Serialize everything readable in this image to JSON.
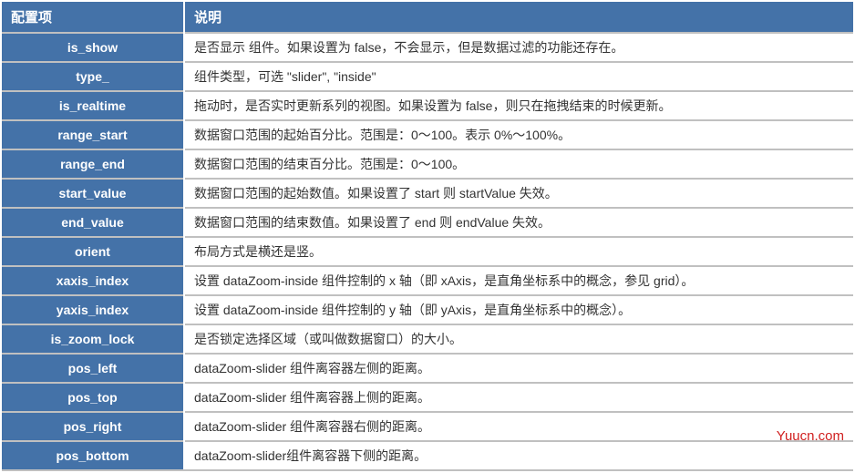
{
  "table": {
    "header": {
      "key": "配置项",
      "desc": "说明"
    },
    "rows": [
      {
        "key": "is_show",
        "desc": "是否显示 组件。如果设置为 false，不会显示，但是数据过滤的功能还存在。"
      },
      {
        "key": "type_",
        "desc": "组件类型，可选 \"slider\", \"inside\""
      },
      {
        "key": "is_realtime",
        "desc": "拖动时，是否实时更新系列的视图。如果设置为 false，则只在拖拽结束的时候更新。"
      },
      {
        "key": "range_start",
        "desc": "数据窗口范围的起始百分比。范围是：0～100。表示 0%～100%。"
      },
      {
        "key": "range_end",
        "desc": "数据窗口范围的结束百分比。范围是：0～100。"
      },
      {
        "key": "start_value",
        "desc": "数据窗口范围的起始数值。如果设置了 start 则 startValue 失效。"
      },
      {
        "key": "end_value",
        "desc": "数据窗口范围的结束数值。如果设置了 end 则 endValue 失效。"
      },
      {
        "key": "orient",
        "desc": "布局方式是横还是竖。"
      },
      {
        "key": "xaxis_index",
        "desc": "设置 dataZoom-inside 组件控制的 x 轴（即 xAxis，是直角坐标系中的概念，参见 grid）。"
      },
      {
        "key": "yaxis_index",
        "desc": "设置 dataZoom-inside 组件控制的 y 轴（即 yAxis，是直角坐标系中的概念）。"
      },
      {
        "key": "is_zoom_lock",
        "desc": "是否锁定选择区域（或叫做数据窗口）的大小。"
      },
      {
        "key": "pos_left",
        "desc": "dataZoom-slider 组件离容器左侧的距离。"
      },
      {
        "key": "pos_top",
        "desc": "dataZoom-slider 组件离容器上侧的距离。"
      },
      {
        "key": "pos_right",
        "desc": "dataZoom-slider 组件离容器右侧的距离。"
      },
      {
        "key": "pos_bottom",
        "desc": "dataZoom-slider组件离容器下侧的距离。"
      }
    ]
  },
  "watermark": "Yuucn.com",
  "colors": {
    "header_bg": "#4472a8",
    "header_text": "#ffffff",
    "border": "#c0c0c0",
    "watermark": "#d02020"
  }
}
